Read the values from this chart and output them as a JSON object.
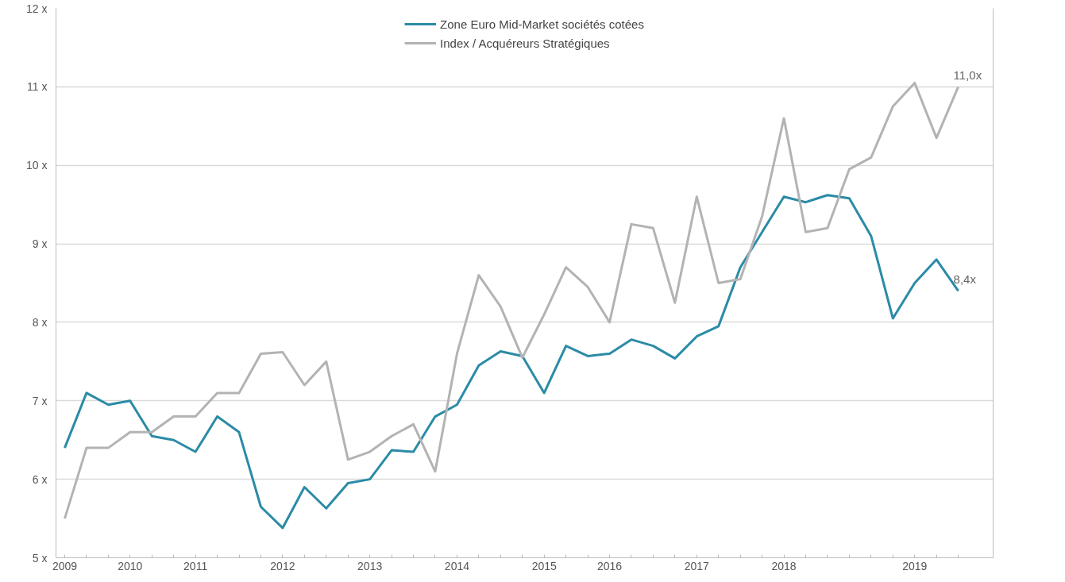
{
  "chart_data": {
    "type": "line",
    "categories": [
      "2009",
      null,
      null,
      "2010",
      null,
      null,
      "2011",
      null,
      null,
      null,
      "2012",
      null,
      null,
      null,
      "2013",
      null,
      null,
      null,
      "2014",
      null,
      null,
      null,
      "2015",
      null,
      null,
      "2016",
      null,
      null,
      null,
      "2017",
      null,
      null,
      null,
      "2018",
      null,
      null,
      null,
      null,
      null,
      "2019",
      null,
      null
    ],
    "series": [
      {
        "name": "Zone Euro Mid-Market sociétés cotées",
        "color": "#2b8ba6",
        "values": [
          6.4,
          7.1,
          6.95,
          7.0,
          6.55,
          6.5,
          6.35,
          6.8,
          6.6,
          5.65,
          5.38,
          5.9,
          5.63,
          5.95,
          6.0,
          6.37,
          6.35,
          6.8,
          6.95,
          7.45,
          7.63,
          7.57,
          7.1,
          7.7,
          7.57,
          7.6,
          7.78,
          7.7,
          7.54,
          7.82,
          7.95,
          8.7,
          9.15,
          9.6,
          9.53,
          9.62,
          9.58,
          9.1,
          8.05,
          8.5,
          8.8,
          8.4
        ],
        "value_labels": [
          null,
          null,
          null,
          null,
          null,
          null,
          null,
          null,
          null,
          null,
          null,
          null,
          null,
          null,
          null,
          null,
          null,
          null,
          null,
          null,
          null,
          null,
          null,
          null,
          null,
          null,
          null,
          null,
          null,
          null,
          null,
          null,
          null,
          null,
          null,
          null,
          null,
          null,
          null,
          null,
          null,
          "8,4x"
        ]
      },
      {
        "name": "Index / Acquéreurs Stratégiques",
        "color": "#b3b3b3",
        "values": [
          5.5,
          6.4,
          6.4,
          6.6,
          6.6,
          6.8,
          6.8,
          7.1,
          7.1,
          7.6,
          7.62,
          7.2,
          7.5,
          6.25,
          6.35,
          6.55,
          6.7,
          6.1,
          7.6,
          8.6,
          8.2,
          7.55,
          8.1,
          8.7,
          8.45,
          8.0,
          9.25,
          9.2,
          8.25,
          9.6,
          8.5,
          8.55,
          9.35,
          10.6,
          9.15,
          9.2,
          9.95,
          10.1,
          10.75,
          11.05,
          10.35,
          11.0
        ],
        "value_labels": [
          null,
          null,
          null,
          null,
          null,
          null,
          null,
          null,
          null,
          null,
          null,
          null,
          null,
          null,
          null,
          null,
          null,
          null,
          null,
          null,
          null,
          null,
          null,
          null,
          null,
          null,
          null,
          null,
          null,
          null,
          null,
          null,
          null,
          null,
          null,
          null,
          null,
          null,
          null,
          null,
          null,
          "11,0x"
        ]
      }
    ],
    "ylim": [
      5,
      12
    ],
    "yticks": [
      {
        "value": 5,
        "label": "5 x"
      },
      {
        "value": 6,
        "label": "6 x"
      },
      {
        "value": 7,
        "label": "7 x"
      },
      {
        "value": 8,
        "label": "8 x"
      },
      {
        "value": 9,
        "label": "9 x"
      },
      {
        "value": 10,
        "label": "10 x"
      },
      {
        "value": 11,
        "label": "11 x"
      },
      {
        "value": 12,
        "label": "12 x"
      }
    ],
    "grid": "y",
    "legend": "top",
    "line_style": "solid",
    "marker": "none"
  }
}
